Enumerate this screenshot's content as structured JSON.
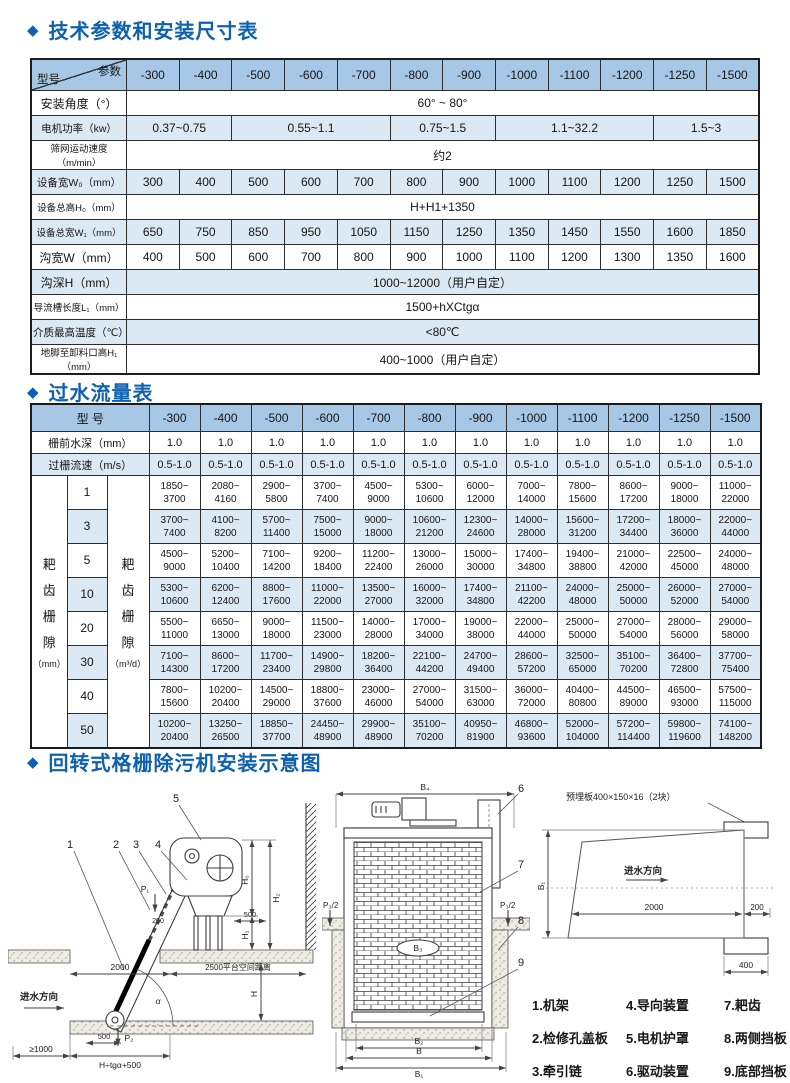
{
  "colors": {
    "title_blue": "#0d61ae",
    "header_blue": "#a6c8e6",
    "row_blue": "#dbe9f5"
  },
  "sections": {
    "params": {
      "title": "技术参数和安装尺寸表"
    },
    "flow": {
      "title": "过水流量表"
    },
    "install": {
      "title": "回转式格栅除污机安装示意图"
    }
  },
  "params_table": {
    "corner_top": "参数",
    "corner_bottom": "型号",
    "models": [
      "-300",
      "-400",
      "-500",
      "-600",
      "-700",
      "-800",
      "-900",
      "-1000",
      "-1100",
      "-1200",
      "-1250",
      "-1500"
    ],
    "rows": [
      {
        "label": "安装角度（°）",
        "cells": [
          {
            "text": "60° ~ 80°",
            "span": 12
          }
        ]
      },
      {
        "label": "电机功率（kw）",
        "cells": [
          {
            "text": "0.37~0.75",
            "span": 2
          },
          {
            "text": "0.55~1.1",
            "span": 3
          },
          {
            "text": "0.75~1.5",
            "span": 2
          },
          {
            "text": "1.1~32.2",
            "span": 3
          },
          {
            "text": "1.5~3",
            "span": 2
          }
        ]
      },
      {
        "label": "筛网运动速度（m/min）",
        "cells": [
          {
            "text": "约2",
            "span": 12
          }
        ]
      },
      {
        "label": "设备宽W₀（mm）",
        "values": [
          "300",
          "400",
          "500",
          "600",
          "700",
          "800",
          "900",
          "1000",
          "1100",
          "1200",
          "1250",
          "1500"
        ]
      },
      {
        "label": "设备总高H₀（mm）",
        "cells": [
          {
            "text": "H+H1+1350",
            "span": 12
          }
        ]
      },
      {
        "label": "设备总宽W₁（mm）",
        "values": [
          "650",
          "750",
          "850",
          "950",
          "1050",
          "1150",
          "1250",
          "1350",
          "1450",
          "1550",
          "1600",
          "1850"
        ]
      },
      {
        "label": "沟宽W（mm）",
        "values": [
          "400",
          "500",
          "600",
          "700",
          "800",
          "900",
          "1000",
          "1100",
          "1200",
          "1300",
          "1350",
          "1600"
        ]
      },
      {
        "label": "沟深H（mm）",
        "cells": [
          {
            "text": "1000~12000（用户自定）",
            "span": 12
          }
        ]
      },
      {
        "label": "导流槽长度L₁（mm）",
        "cells": [
          {
            "text": "1500+hXCtgα",
            "span": 12
          }
        ]
      },
      {
        "label": "介质最高温度（℃）",
        "cells": [
          {
            "text": "<80℃",
            "span": 12
          }
        ]
      },
      {
        "label": "地脚至卸料口高H₁（mm）",
        "cells": [
          {
            "text": "400~1000（用户自定）",
            "span": 12
          }
        ]
      }
    ]
  },
  "flow_table": {
    "header_label": "型  号",
    "models": [
      "-300",
      "-400",
      "-500",
      "-600",
      "-700",
      "-800",
      "-900",
      "-1000",
      "-1100",
      "-1200",
      "-1250",
      "-1500"
    ],
    "depth_row": {
      "label": "栅前水深（mm）",
      "value": "1.0"
    },
    "speed_row": {
      "label": "过栅流速（m/s）",
      "value": "0.5-1.0"
    },
    "left_header_1": {
      "chars": "耙齿栅隙",
      "unit": "（mm）"
    },
    "left_header_2": {
      "chars": "耙齿栅隙",
      "unit": "（m³/d）"
    },
    "rows": [
      {
        "gap": "1",
        "values": [
          "1850~3700",
          "2080~4160",
          "2900~5800",
          "3700~7400",
          "4500~9000",
          "5300~10600",
          "6000~12000",
          "7000~14000",
          "7800~15600",
          "8600~17200",
          "9000~18000",
          "11000~22000"
        ]
      },
      {
        "gap": "3",
        "values": [
          "3700~7400",
          "4100~8200",
          "5700~11400",
          "7500~15000",
          "9000~18000",
          "10600~21200",
          "12300~24600",
          "14000~28000",
          "15600~31200",
          "17200~34400",
          "18000~36000",
          "22000~44000"
        ]
      },
      {
        "gap": "5",
        "values": [
          "4500~9000",
          "5200~10400",
          "7100~14200",
          "9200~18400",
          "11200~22400",
          "13000~26000",
          "15000~30000",
          "17400~34800",
          "19400~38800",
          "21000~42000",
          "22500~45000",
          "24000~48000"
        ]
      },
      {
        "gap": "10",
        "values": [
          "5300~10600",
          "6200~12400",
          "8800~17600",
          "11000~22000",
          "13500~27000",
          "16000~32000",
          "17400~34800",
          "21100~42200",
          "24000~48000",
          "25000~50000",
          "26000~52000",
          "27000~54000"
        ]
      },
      {
        "gap": "20",
        "values": [
          "5500~11000",
          "6650~13000",
          "9000~18000",
          "11500~23000",
          "14000~28000",
          "17000~34000",
          "19000~38000",
          "22000~44000",
          "25000~50000",
          "27000~54000",
          "28000~56000",
          "29000~58000"
        ]
      },
      {
        "gap": "30",
        "values": [
          "7100~14300",
          "8600~17200",
          "11700~23400",
          "14900~29800",
          "18200~36400",
          "22100~44200",
          "24700~49400",
          "28600~57200",
          "32500~65000",
          "35100~70200",
          "36400~72800",
          "37700~75400"
        ]
      },
      {
        "gap": "40",
        "values": [
          "7800~15600",
          "10200~20400",
          "14500~29000",
          "18800~37600",
          "23000~46000",
          "27000~54000",
          "31500~63000",
          "36000~72000",
          "40400~80800",
          "44500~89000",
          "46500~93000",
          "57500~115000"
        ]
      },
      {
        "gap": "50",
        "values": [
          "10200~20400",
          "13250~26500",
          "18850~37700",
          "24450~48900",
          "29900~48900",
          "35100~70200",
          "40950~81900",
          "46800~93600",
          "52000~104000",
          "57200~114400",
          "59800~119600",
          "74100~148200"
        ]
      }
    ]
  },
  "diagrams": {
    "side": {
      "parts": [
        "1",
        "2",
        "3",
        "4",
        "5"
      ],
      "flow": "进水方向",
      "p1": "P₁",
      "p2": "P₂",
      "d2000": "2000",
      "dplatform": "2500平台空间距离",
      "d500a": "500",
      "d500b": "500",
      "d200": "200",
      "dge1000": "≥1000",
      "dformula": "H÷tgα+500",
      "h0": "H₀",
      "h1": "H₁",
      "h2": "H₂",
      "h": "H",
      "alpha": "α"
    },
    "front": {
      "parts": [
        "6",
        "7",
        "8",
        "9"
      ],
      "b4": "B₄",
      "b3": "B₃",
      "b2": "B₂",
      "b": "B",
      "b1": "B₁",
      "p3l": "P₃/2",
      "p3r": "P₃/2"
    },
    "plan": {
      "plate": "预埋板400×150×16（2块）",
      "flow": "进水方向",
      "b1": "B₁",
      "d2000": "2000",
      "d200": "200",
      "d400": "400"
    },
    "legend": [
      {
        "num": "1.",
        "name": "机架"
      },
      {
        "num": "4.",
        "name": "导向装置"
      },
      {
        "num": "7.",
        "name": "耙齿"
      },
      {
        "num": "2.",
        "name": "检修孔盖板"
      },
      {
        "num": "5.",
        "name": "电机护罩"
      },
      {
        "num": "8.",
        "name": "两侧挡板"
      },
      {
        "num": "3.",
        "name": "牵引链"
      },
      {
        "num": "6.",
        "name": "驱动装置"
      },
      {
        "num": "9.",
        "name": "底部挡板"
      }
    ]
  }
}
